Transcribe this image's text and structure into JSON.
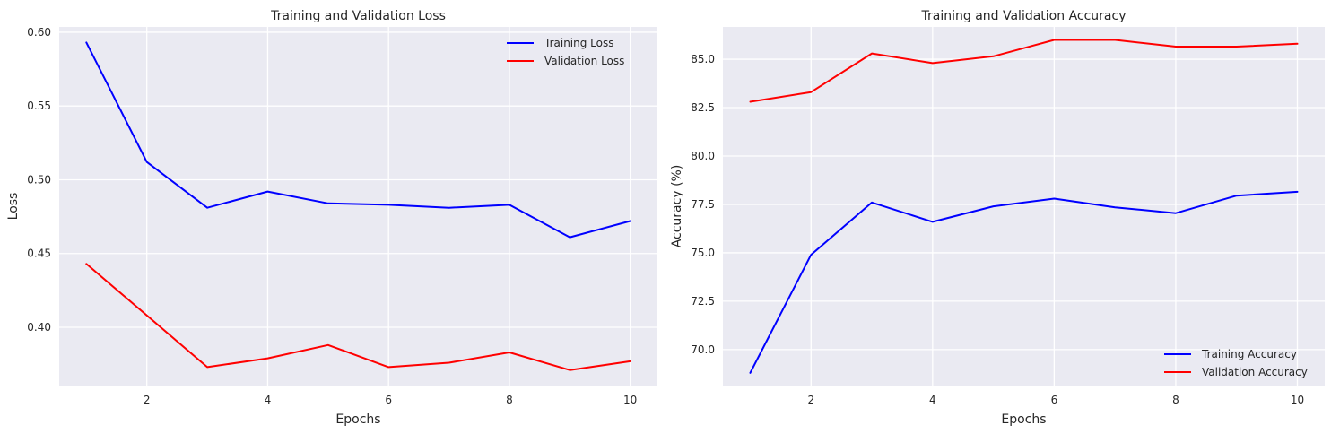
{
  "chart_data": [
    {
      "type": "line",
      "title": "Training and Validation Loss",
      "xlabel": "Epochs",
      "ylabel": "Loss",
      "x": [
        1,
        2,
        3,
        4,
        5,
        6,
        7,
        8,
        9,
        10
      ],
      "xlim": [
        0.55,
        10.45
      ],
      "ylim": [
        0.3605,
        0.6036
      ],
      "xticks": [
        2,
        4,
        6,
        8,
        10
      ],
      "xtick_labels": [
        "2",
        "4",
        "6",
        "8",
        "10"
      ],
      "yticks": [
        0.4,
        0.45,
        0.5,
        0.55,
        0.6
      ],
      "ytick_labels": [
        "0.40",
        "0.45",
        "0.50",
        "0.55",
        "0.60"
      ],
      "grid": true,
      "legend_position": "top-right",
      "series": [
        {
          "name": "Training Loss",
          "color": "#0000ff",
          "values": [
            0.593,
            0.512,
            0.481,
            0.492,
            0.484,
            0.483,
            0.481,
            0.483,
            0.461,
            0.472
          ]
        },
        {
          "name": "Validation Loss",
          "color": "#ff0000",
          "values": [
            0.443,
            0.408,
            0.373,
            0.379,
            0.388,
            0.373,
            0.376,
            0.383,
            0.371,
            0.377
          ]
        }
      ]
    },
    {
      "type": "line",
      "title": "Training and Validation Accuracy",
      "xlabel": "Epochs",
      "ylabel": "Accuracy (%)",
      "x": [
        1,
        2,
        3,
        4,
        5,
        6,
        7,
        8,
        9,
        10
      ],
      "xlim": [
        0.55,
        10.45
      ],
      "ylim": [
        68.14,
        86.67
      ],
      "xticks": [
        2,
        4,
        6,
        8,
        10
      ],
      "xtick_labels": [
        "2",
        "4",
        "6",
        "8",
        "10"
      ],
      "yticks": [
        70.0,
        72.5,
        75.0,
        77.5,
        80.0,
        82.5,
        85.0
      ],
      "ytick_labels": [
        "70.0",
        "72.5",
        "75.0",
        "77.5",
        "80.0",
        "82.5",
        "85.0"
      ],
      "grid": true,
      "legend_position": "bottom-right",
      "series": [
        {
          "name": "Training Accuracy",
          "color": "#0000ff",
          "values": [
            68.8,
            74.9,
            77.6,
            76.6,
            77.4,
            77.8,
            77.35,
            77.05,
            77.95,
            78.15
          ]
        },
        {
          "name": "Validation Accuracy",
          "color": "#ff0000",
          "values": [
            82.8,
            83.3,
            85.3,
            84.8,
            85.15,
            86.0,
            86.0,
            85.65,
            85.65,
            85.8
          ]
        }
      ]
    }
  ]
}
